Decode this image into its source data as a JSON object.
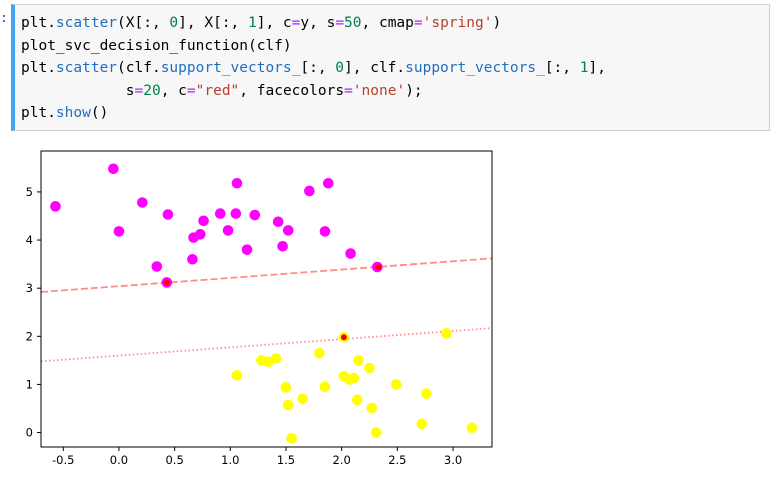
{
  "cell": {
    "prompt_mark": ":",
    "lines": [
      [
        {
          "t": "plt.",
          "c": "txt"
        },
        {
          "t": "scatter",
          "c": "kw-attr"
        },
        {
          "t": "(X[:, ",
          "c": "txt"
        },
        {
          "t": "0",
          "c": "num"
        },
        {
          "t": "], X[:, ",
          "c": "txt"
        },
        {
          "t": "1",
          "c": "num"
        },
        {
          "t": "], c",
          "c": "txt"
        },
        {
          "t": "=",
          "c": "eq"
        },
        {
          "t": "y, s",
          "c": "txt"
        },
        {
          "t": "=",
          "c": "eq"
        },
        {
          "t": "50",
          "c": "num"
        },
        {
          "t": ", cmap",
          "c": "txt"
        },
        {
          "t": "=",
          "c": "eq"
        },
        {
          "t": "'spring'",
          "c": "str"
        },
        {
          "t": ")",
          "c": "txt"
        }
      ],
      [
        {
          "t": "plot_svc_decision_function(clf)",
          "c": "txt"
        }
      ],
      [
        {
          "t": "plt.",
          "c": "txt"
        },
        {
          "t": "scatter",
          "c": "kw-attr"
        },
        {
          "t": "(clf.",
          "c": "txt"
        },
        {
          "t": "support_vectors_",
          "c": "kw-attr"
        },
        {
          "t": "[:, ",
          "c": "txt"
        },
        {
          "t": "0",
          "c": "num"
        },
        {
          "t": "], clf.",
          "c": "txt"
        },
        {
          "t": "support_vectors_",
          "c": "kw-attr"
        },
        {
          "t": "[:, ",
          "c": "txt"
        },
        {
          "t": "1",
          "c": "num"
        },
        {
          "t": "],",
          "c": "txt"
        }
      ],
      [
        {
          "t": "            s",
          "c": "txt"
        },
        {
          "t": "=",
          "c": "eq"
        },
        {
          "t": "20",
          "c": "num"
        },
        {
          "t": ", c",
          "c": "txt"
        },
        {
          "t": "=",
          "c": "eq"
        },
        {
          "t": "\"red\"",
          "c": "str"
        },
        {
          "t": ", facecolors",
          "c": "txt"
        },
        {
          "t": "=",
          "c": "eq"
        },
        {
          "t": "'none'",
          "c": "str"
        },
        {
          "t": ");",
          "c": "txt"
        }
      ],
      [
        {
          "t": "plt.",
          "c": "txt"
        },
        {
          "t": "show",
          "c": "kw-attr"
        },
        {
          "t": "()",
          "c": "txt"
        }
      ]
    ]
  },
  "chart_data": {
    "type": "scatter",
    "title": "",
    "xlabel": "",
    "ylabel": "",
    "xlim": [
      -0.7,
      3.35
    ],
    "ylim": [
      -0.3,
      5.85
    ],
    "xticks": [
      -0.5,
      0.0,
      0.5,
      1.0,
      1.5,
      2.0,
      2.5,
      3.0
    ],
    "xtick_labels": [
      "-0.5",
      "0.0",
      "0.5",
      "1.0",
      "1.5",
      "2.0",
      "2.5",
      "3.0"
    ],
    "yticks": [
      0,
      1,
      2,
      3,
      4,
      5
    ],
    "ytick_labels": [
      "0",
      "1",
      "2",
      "3",
      "4",
      "5"
    ],
    "grid": false,
    "colors": {
      "class_0": "#ff00ff",
      "class_1": "#ffff00",
      "margin": "#ff8c8c",
      "support": "#ff0000"
    },
    "series": [
      {
        "color": "#ff00ff",
        "points": [
          [
            -0.57,
            4.7
          ],
          [
            -0.05,
            5.48
          ],
          [
            0.0,
            4.18
          ],
          [
            0.21,
            4.78
          ],
          [
            0.34,
            3.45
          ],
          [
            0.44,
            4.53
          ],
          [
            0.43,
            3.12
          ],
          [
            0.66,
            3.6
          ],
          [
            0.67,
            4.05
          ],
          [
            0.73,
            4.12
          ],
          [
            0.76,
            4.4
          ],
          [
            0.91,
            4.55
          ],
          [
            0.98,
            4.2
          ],
          [
            1.05,
            4.55
          ],
          [
            1.06,
            5.18
          ],
          [
            1.15,
            3.8
          ],
          [
            1.22,
            4.52
          ],
          [
            1.43,
            4.38
          ],
          [
            1.47,
            3.87
          ],
          [
            1.52,
            4.2
          ],
          [
            1.71,
            5.02
          ],
          [
            1.85,
            4.18
          ],
          [
            1.88,
            5.18
          ],
          [
            2.08,
            3.72
          ],
          [
            2.32,
            3.44
          ]
        ]
      },
      {
        "color": "#ffff00",
        "points": [
          [
            2.94,
            2.06
          ],
          [
            2.02,
            1.98
          ],
          [
            1.06,
            1.19
          ],
          [
            1.28,
            1.5
          ],
          [
            1.34,
            1.47
          ],
          [
            1.41,
            1.54
          ],
          [
            1.5,
            0.94
          ],
          [
            1.52,
            0.57
          ],
          [
            1.55,
            -0.12
          ],
          [
            1.65,
            0.7
          ],
          [
            1.8,
            1.65
          ],
          [
            1.85,
            0.95
          ],
          [
            2.02,
            1.17
          ],
          [
            2.07,
            1.1
          ],
          [
            2.11,
            1.13
          ],
          [
            2.14,
            0.68
          ],
          [
            2.15,
            1.5
          ],
          [
            2.25,
            1.34
          ],
          [
            2.27,
            0.51
          ],
          [
            2.31,
            0.0
          ],
          [
            2.49,
            1.0
          ],
          [
            2.72,
            0.18
          ],
          [
            2.76,
            0.81
          ],
          [
            3.17,
            0.1
          ]
        ]
      }
    ],
    "support_vectors": [
      [
        0.43,
        3.12
      ],
      [
        2.33,
        3.44
      ],
      [
        2.02,
        1.98
      ]
    ],
    "lines": [
      {
        "style": "dashed",
        "x": [
          -0.7,
          3.35
        ],
        "y": [
          2.92,
          3.62
        ]
      },
      {
        "style": "dotted",
        "x": [
          -0.7,
          3.35
        ],
        "y": [
          1.48,
          2.17
        ]
      }
    ]
  }
}
